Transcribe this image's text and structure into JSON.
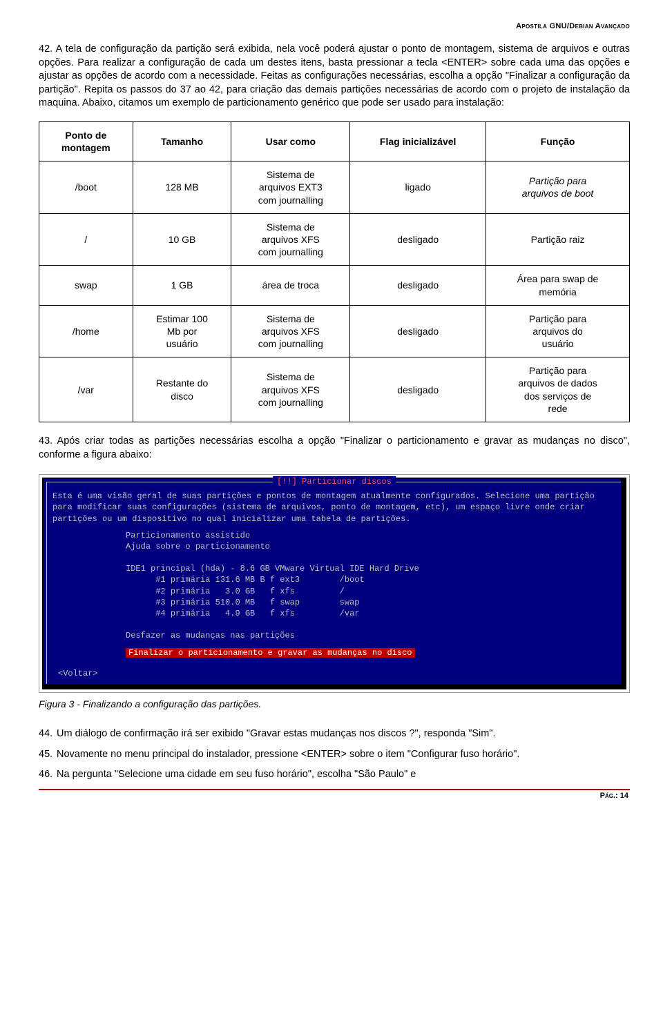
{
  "header": "Apostila GNU/Debian Avançado",
  "para42_num": "42.",
  "para42_body": "A tela de configuração da partição será exibida, nela você poderá ajustar o ponto de montagem, sistema de arquivos e outras opções. Para realizar a configuração de cada um destes itens, basta pressionar a tecla <ENTER> sobre cada uma das opções e ajustar as opções de acordo com a necessidade. Feitas as configurações necessárias, escolha a opção \"Finalizar a configuração da partição\". Repita os passos do 37 ao 42, para criação das demais partições necessárias de acordo com o projeto de instalação da maquina. Abaixo, citamos um exemplo de particionamento genérico que pode ser usado para instalação:",
  "table": {
    "headers": [
      "Ponto de\nmontagem",
      "Tamanho",
      "Usar como",
      "Flag inicializável",
      "Função"
    ],
    "rows": [
      [
        "/boot",
        "128 MB",
        "Sistema de\narquivos EXT3\ncom journalling",
        "ligado",
        "Partição para\narquivos de boot"
      ],
      [
        "/",
        "10 GB",
        "Sistema de\narquivos XFS\ncom journalling",
        "desligado",
        "Partição raiz"
      ],
      [
        "swap",
        "1 GB",
        "área de troca",
        "desligado",
        "Área para swap de\nmemória"
      ],
      [
        "/home",
        "Estimar 100\nMb por\nusuário",
        "Sistema de\narquivos XFS\ncom journalling",
        "desligado",
        "Partição para\narquivos do\nusuário"
      ],
      [
        "/var",
        "Restante do\ndisco",
        "Sistema de\narquivos XFS\ncom journalling",
        "desligado",
        "Partição para\narquivos de dados\ndos serviços de\nrede"
      ]
    ]
  },
  "para43_num": "43.",
  "para43_body": "Após criar todas as partições necessárias escolha a opção \"Finalizar o particionamento e gravar as mudanças no disco\", conforme a figura abaixo:",
  "terminal": {
    "title": "[!!] Particionar discos",
    "desc": "Esta é uma visão geral de suas partições e pontos de montagem atualmente configurados. Selecione uma partição para modificar suas configurações (sistema de arquivos, ponto de montagem, etc), um espaço livre onde criar partições ou um dispositivo no qual inicializar uma tabela de partições.",
    "lines1": "               Particionamento assistido\n               Ajuda sobre o particionamento\n\n               IDE1 principal (hda) - 8.6 GB VMware Virtual IDE Hard Drive\n                     #1 primária 131.6 MB B f ext3        /boot\n                     #2 primária   3.0 GB   f xfs         /\n                     #3 primária 510.0 MB   f swap        swap\n                     #4 primária   4.9 GB   f xfs         /var\n\n               Desfazer as mudanças nas partições",
    "selected": "Finalizar o particionamento e gravar as mudanças no disco",
    "back": "<Voltar>"
  },
  "caption": "Figura 3 - Finalizando a configuração das partições.",
  "para44_num": "44.",
  "para44_body": "Um diálogo de confirmação irá ser exibido \"Gravar estas mudanças nos discos ?\", responda \"Sim\".",
  "para45_num": "45.",
  "para45_body": "Novamente no menu principal do instalador, pressione <ENTER> sobre o item \"Configurar fuso horário\".",
  "para46_num": "46.",
  "para46_body": "Na pergunta \"Selecione uma cidade em seu fuso horário\", escolha \"São Paulo\" e",
  "footer": "Pág.: 14"
}
